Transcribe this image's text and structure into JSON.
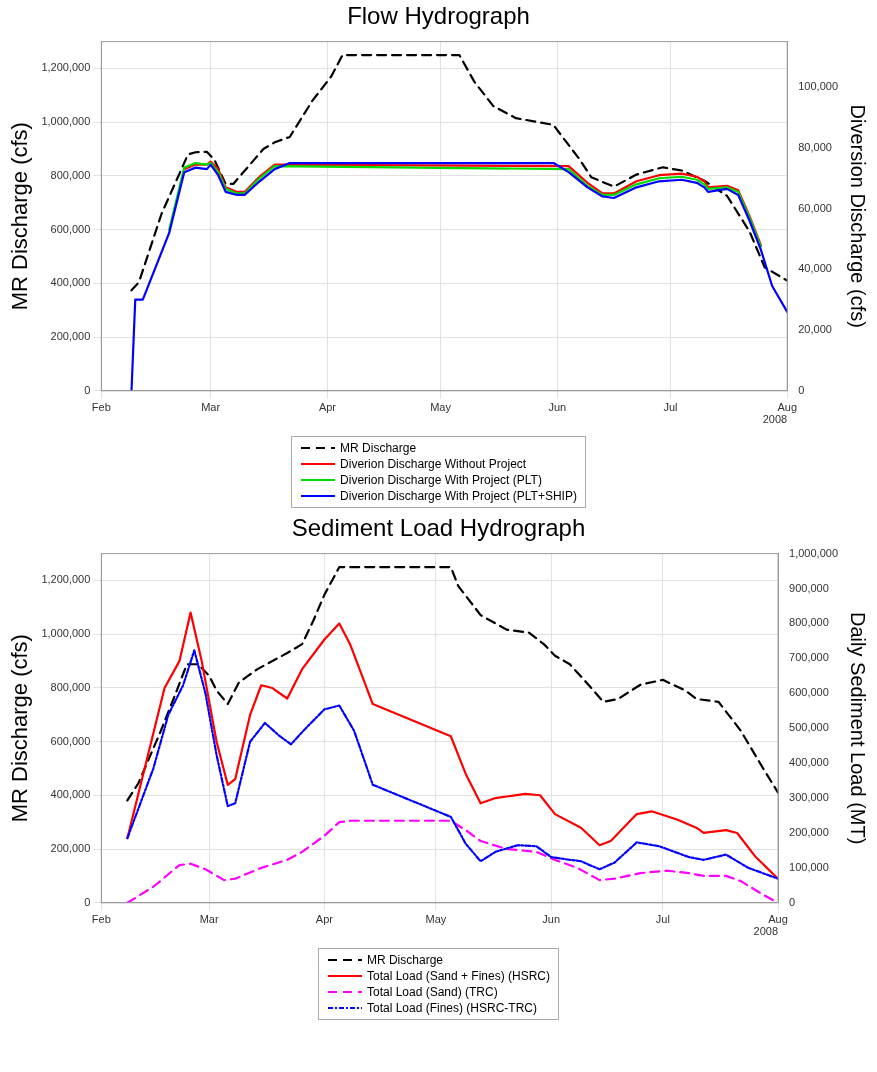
{
  "chart_data": [
    {
      "type": "line",
      "title": "Flow Hydrograph",
      "ylabel": "MR Discharge (cfs)",
      "y2label": "Diversion Discharge (cfs)",
      "xlim": [
        "2008-02-01",
        "2008-08-01"
      ],
      "xticks": [
        {
          "value": "2008-02-01",
          "label": "Feb"
        },
        {
          "value": "2008-03-01",
          "label": "Mar"
        },
        {
          "value": "2008-04-01",
          "label": "Apr"
        },
        {
          "value": "2008-05-01",
          "label": "May"
        },
        {
          "value": "2008-06-01",
          "label": "Jun"
        },
        {
          "value": "2008-07-01",
          "label": "Jul"
        },
        {
          "value": "2008-08-01",
          "label": "Aug"
        }
      ],
      "ylim": [
        0,
        1300000
      ],
      "yticks": [
        0,
        {
          "value": 200000,
          "label": "200,000"
        },
        {
          "value": 400000,
          "label": "400,000"
        },
        {
          "value": 600000,
          "label": "600,000"
        },
        {
          "value": 800000,
          "label": "800,000"
        },
        {
          "value": 1000000,
          "label": "1,000,000"
        },
        {
          "value": 1200000,
          "label": "1,200,000"
        }
      ],
      "y2lim": [
        0,
        115000
      ],
      "y2ticks": [
        0,
        {
          "value": 20000,
          "label": "20,000"
        },
        {
          "value": 40000,
          "label": "40,000"
        },
        {
          "value": 60000,
          "label": "60,000"
        },
        {
          "value": 80000,
          "label": "80,000"
        },
        {
          "value": 100000,
          "label": "100,000"
        }
      ],
      "grid": true,
      "legend": "bottom",
      "annotations": [
        "2008"
      ],
      "x": [
        "2008-02-09",
        "2008-02-10",
        "2008-02-12",
        "2008-02-19",
        "2008-02-23",
        "2008-02-26",
        "2008-02-29",
        "2008-03-01",
        "2008-03-03",
        "2008-03-05",
        "2008-03-08",
        "2008-03-10",
        "2008-03-14",
        "2008-03-18",
        "2008-03-22",
        "2008-05-31",
        "2008-06-04",
        "2008-06-09",
        "2008-06-13",
        "2008-06-16",
        "2008-06-22",
        "2008-06-28",
        "2008-07-04",
        "2008-07-08",
        "2008-07-10",
        "2008-07-11",
        "2008-07-16",
        "2008-07-19",
        "2008-07-22",
        "2008-07-25",
        "2008-07-28",
        "2008-08-01"
      ],
      "series": [
        {
          "name": "MR Discharge",
          "color": "#000000",
          "line_style": "dashed",
          "x": [
            "2008-02-09",
            "2008-02-11",
            "2008-02-17",
            "2008-02-24",
            "2008-02-26",
            "2008-02-29",
            "2008-03-02",
            "2008-03-05",
            "2008-03-07",
            "2008-03-11",
            "2008-03-15",
            "2008-03-18",
            "2008-03-22",
            "2008-03-28",
            "2008-04-02",
            "2008-04-05",
            "2008-05-06",
            "2008-05-10",
            "2008-05-15",
            "2008-05-21",
            "2008-05-31",
            "2008-06-01",
            "2008-06-07",
            "2008-06-10",
            "2008-06-16",
            "2008-06-22",
            "2008-06-29",
            "2008-07-04",
            "2008-07-10",
            "2008-07-16",
            "2008-07-22",
            "2008-07-26",
            "2008-08-01"
          ],
          "values": [
            374000,
            405000,
            660000,
            880000,
            888000,
            890000,
            860000,
            770000,
            770000,
            835000,
            900000,
            925000,
            945000,
            1080000,
            1170000,
            1250000,
            1250000,
            1150000,
            1060000,
            1015000,
            990000,
            970000,
            860000,
            795000,
            760000,
            805000,
            832000,
            820000,
            782000,
            726000,
            593000,
            460000,
            410000
          ]
        },
        {
          "name": "Diverion Discharge Without Project",
          "color": "#ff0000",
          "line_style": "solid",
          "axis": "y2",
          "values": [
            null,
            null,
            null,
            null,
            73000,
            74500,
            74500,
            75500,
            73000,
            67000,
            65500,
            65500,
            70500,
            74500,
            null,
            null,
            74000,
            68500,
            65000,
            65000,
            69000,
            71000,
            71500,
            70500,
            69000,
            67000,
            67500,
            66000,
            57500,
            48000,
            null,
            null
          ]
        },
        {
          "name": "Diverion Discharge With Project (PLT)",
          "color": "#00dd00",
          "line_style": "solid",
          "axis": "y2",
          "values": [
            null,
            null,
            null,
            53000,
            73500,
            75000,
            74500,
            75000,
            72000,
            66500,
            65000,
            65000,
            70000,
            74000,
            null,
            null,
            73000,
            67500,
            64500,
            64500,
            68000,
            70000,
            70500,
            69500,
            68000,
            66500,
            67000,
            65500,
            57000,
            47500,
            null,
            null
          ]
        },
        {
          "name": "Diverion Discharge With Project (PLT+SHIP)",
          "color": "#0000ff",
          "line_style": "solid",
          "axis": "y2",
          "values": [
            0,
            30000,
            30000,
            52000,
            72000,
            73500,
            73000,
            74500,
            71000,
            65500,
            64500,
            64500,
            69000,
            73000,
            75000,
            75000,
            72000,
            67000,
            64000,
            63500,
            67000,
            69000,
            69500,
            68500,
            67000,
            65500,
            66500,
            64500,
            56000,
            46500,
            34500,
            26000
          ]
        }
      ]
    },
    {
      "type": "line",
      "title": "Sediment Load  Hydrograph",
      "ylabel": "MR Discharge (cfs)",
      "y2label": "Daily Sediment Load (MT)",
      "xlim": [
        "2008-02-01",
        "2008-08-01"
      ],
      "xticks": [
        {
          "value": "2008-02-01",
          "label": "Feb"
        },
        {
          "value": "2008-03-01",
          "label": "Mar"
        },
        {
          "value": "2008-04-01",
          "label": "Apr"
        },
        {
          "value": "2008-05-01",
          "label": "May"
        },
        {
          "value": "2008-06-01",
          "label": "Jun"
        },
        {
          "value": "2008-07-01",
          "label": "Jul"
        },
        {
          "value": "2008-08-01",
          "label": "Aug"
        }
      ],
      "ylim": [
        0,
        1300000
      ],
      "yticks": [
        0,
        {
          "value": 200000,
          "label": "200,000"
        },
        {
          "value": 400000,
          "label": "400,000"
        },
        {
          "value": 600000,
          "label": "600,000"
        },
        {
          "value": 800000,
          "label": "800,000"
        },
        {
          "value": 1000000,
          "label": "1,000,000"
        },
        {
          "value": 1200000,
          "label": "1,200,000"
        }
      ],
      "y2lim": [
        0,
        1000000
      ],
      "y2ticks": [
        0,
        {
          "value": 100000,
          "label": "100,000"
        },
        {
          "value": 200000,
          "label": "200,000"
        },
        {
          "value": 300000,
          "label": "300,000"
        },
        {
          "value": 400000,
          "label": "400,000"
        },
        {
          "value": 500000,
          "label": "500,000"
        },
        {
          "value": 600000,
          "label": "600,000"
        },
        {
          "value": 700000,
          "label": "700,000"
        },
        {
          "value": 800000,
          "label": "800,000"
        },
        {
          "value": 900000,
          "label": "900,000"
        },
        {
          "value": 1000000,
          "label": "1,000,000"
        }
      ],
      "grid": true,
      "legend": "bottom",
      "annotations": [
        "2008"
      ],
      "series": [
        {
          "name": "MR Discharge",
          "color": "#000000",
          "line_style": "dashed",
          "x": [
            "2008-02-08",
            "2008-02-11",
            "2008-02-17",
            "2008-02-21",
            "2008-02-24",
            "2008-02-27",
            "2008-03-01",
            "2008-03-03",
            "2008-03-06",
            "2008-03-09",
            "2008-03-14",
            "2008-03-22",
            "2008-03-26",
            "2008-03-29",
            "2008-04-01",
            "2008-04-05",
            "2008-05-05",
            "2008-05-07",
            "2008-05-13",
            "2008-05-20",
            "2008-05-26",
            "2008-05-30",
            "2008-06-02",
            "2008-06-06",
            "2008-06-11",
            "2008-06-15",
            "2008-06-19",
            "2008-06-25",
            "2008-07-01",
            "2008-07-07",
            "2008-07-10",
            "2008-07-16",
            "2008-07-22",
            "2008-07-28",
            "2008-08-01"
          ],
          "values": [
            381000,
            446000,
            640000,
            780000,
            888000,
            888000,
            845000,
            790000,
            740000,
            820000,
            870000,
            930000,
            963000,
            1050000,
            1147000,
            1250000,
            1250000,
            1179000,
            1071000,
            1017000,
            1006000,
            963000,
            920000,
            888000,
            812000,
            748000,
            759000,
            812000,
            830000,
            791000,
            759000,
            748000,
            640000,
            500000,
            410000
          ]
        },
        {
          "name": "Total Load (Sand + Fines) (HSRC)",
          "color": "#ff0000",
          "line_style": "solid",
          "axis": "y2",
          "x": [
            "2008-02-08",
            "2008-02-18",
            "2008-02-22",
            "2008-02-25",
            "2008-02-28",
            "2008-03-03",
            "2008-03-06",
            "2008-03-08",
            "2008-03-12",
            "2008-03-15",
            "2008-03-18",
            "2008-03-22",
            "2008-03-26",
            "2008-04-01",
            "2008-04-05",
            "2008-04-08",
            "2008-04-14",
            "2008-05-05",
            "2008-05-09",
            "2008-05-13",
            "2008-05-17",
            "2008-05-25",
            "2008-05-29",
            "2008-06-02",
            "2008-06-09",
            "2008-06-14",
            "2008-06-17",
            "2008-06-24",
            "2008-06-28",
            "2008-07-05",
            "2008-07-10",
            "2008-07-12",
            "2008-07-18",
            "2008-07-21",
            "2008-07-26",
            "2008-08-01"
          ],
          "values": [
            185000,
            615000,
            692000,
            831000,
            692000,
            461000,
            338000,
            354000,
            538000,
            623000,
            615000,
            585000,
            669000,
            754000,
            800000,
            738000,
            569000,
            477000,
            369000,
            285000,
            300000,
            312000,
            308000,
            254000,
            215000,
            165000,
            177000,
            254000,
            262000,
            238000,
            215000,
            200000,
            208000,
            200000,
            131000,
            69000
          ]
        },
        {
          "name": "Total Load (Sand) (TRC)",
          "color": "#ff00ff",
          "line_style": "dashed",
          "axis": "y2",
          "x": [
            "2008-02-08",
            "2008-02-15",
            "2008-02-22",
            "2008-02-25",
            "2008-02-29",
            "2008-03-05",
            "2008-03-08",
            "2008-03-15",
            "2008-03-22",
            "2008-03-26",
            "2008-04-01",
            "2008-04-05",
            "2008-04-08",
            "2008-05-05",
            "2008-05-09",
            "2008-05-13",
            "2008-05-20",
            "2008-05-28",
            "2008-06-02",
            "2008-06-08",
            "2008-06-14",
            "2008-06-18",
            "2008-06-25",
            "2008-07-02",
            "2008-07-08",
            "2008-07-12",
            "2008-07-18",
            "2008-07-22",
            "2008-07-28",
            "2008-08-01"
          ],
          "values": [
            0,
            46000,
            108000,
            112000,
            96000,
            65000,
            69000,
            100000,
            123000,
            146000,
            192000,
            231000,
            235000,
            235000,
            208000,
            177000,
            154000,
            146000,
            123000,
            100000,
            65000,
            69000,
            85000,
            92000,
            85000,
            77000,
            77000,
            62000,
            23000,
            0
          ]
        },
        {
          "name": "Total Load (Fines) (HSRC-TRC)",
          "color": "#0000ff",
          "line_style": "dashdot",
          "axis": "y2",
          "x": [
            "2008-02-08",
            "2008-02-15",
            "2008-02-19",
            "2008-02-23",
            "2008-02-26",
            "2008-02-29",
            "2008-03-03",
            "2008-03-06",
            "2008-03-08",
            "2008-03-12",
            "2008-03-16",
            "2008-03-20",
            "2008-03-23",
            "2008-03-27",
            "2008-04-01",
            "2008-04-05",
            "2008-04-09",
            "2008-04-14",
            "2008-05-05",
            "2008-05-09",
            "2008-05-13",
            "2008-05-17",
            "2008-05-23",
            "2008-05-28",
            "2008-06-01",
            "2008-06-06",
            "2008-06-09",
            "2008-06-14",
            "2008-06-18",
            "2008-06-24",
            "2008-06-30",
            "2008-07-08",
            "2008-07-12",
            "2008-07-18",
            "2008-07-24",
            "2008-08-01"
          ],
          "values": [
            185000,
            385000,
            538000,
            623000,
            723000,
            600000,
            423000,
            277000,
            285000,
            461000,
            515000,
            477000,
            454000,
            500000,
            554000,
            565000,
            492000,
            338000,
            246000,
            169000,
            119000,
            146000,
            165000,
            162000,
            131000,
            123000,
            119000,
            96000,
            115000,
            173000,
            162000,
            131000,
            123000,
            138000,
            100000,
            69000
          ]
        }
      ]
    }
  ]
}
